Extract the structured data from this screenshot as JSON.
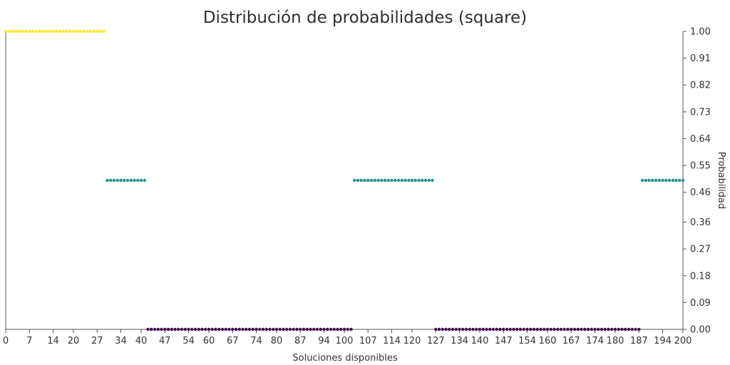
{
  "chart_data": {
    "type": "scatter",
    "title": "Distribución de probabilidades (square)",
    "xlabel": "Soluciones disponibles",
    "ylabel": "Probabilidad",
    "xlim": [
      0,
      200
    ],
    "ylim": [
      0,
      1
    ],
    "x_ticks": [
      "0",
      "7",
      "14",
      "20",
      "27",
      "34",
      "40",
      "47",
      "54",
      "60",
      "67",
      "74",
      "80",
      "87",
      "94",
      "100",
      "107",
      "114",
      "120",
      "127",
      "134",
      "140",
      "147",
      "154",
      "160",
      "167",
      "174",
      "180",
      "187",
      "194",
      "200"
    ],
    "y_ticks": [
      "0.00",
      "0.09",
      "0.18",
      "0.27",
      "0.36",
      "0.46",
      "0.55",
      "0.64",
      "0.73",
      "0.82",
      "0.91",
      "1.00"
    ],
    "y_axis_side": "right",
    "grid": false,
    "colors": {
      "high": "#fde725",
      "mid": "#21918c",
      "low": "#440154"
    },
    "segments": [
      {
        "x_start": 0,
        "x_end": 29,
        "y": 1.0,
        "color_key": "high"
      },
      {
        "x_start": 30,
        "x_end": 41,
        "y": 0.5,
        "color_key": "mid"
      },
      {
        "x_start": 42,
        "x_end": 102,
        "y": 0.0,
        "color_key": "low"
      },
      {
        "x_start": 103,
        "x_end": 126,
        "y": 0.5,
        "color_key": "mid"
      },
      {
        "x_start": 127,
        "x_end": 187,
        "y": 0.0,
        "color_key": "low"
      },
      {
        "x_start": 188,
        "x_end": 200,
        "y": 0.5,
        "color_key": "mid"
      }
    ]
  }
}
